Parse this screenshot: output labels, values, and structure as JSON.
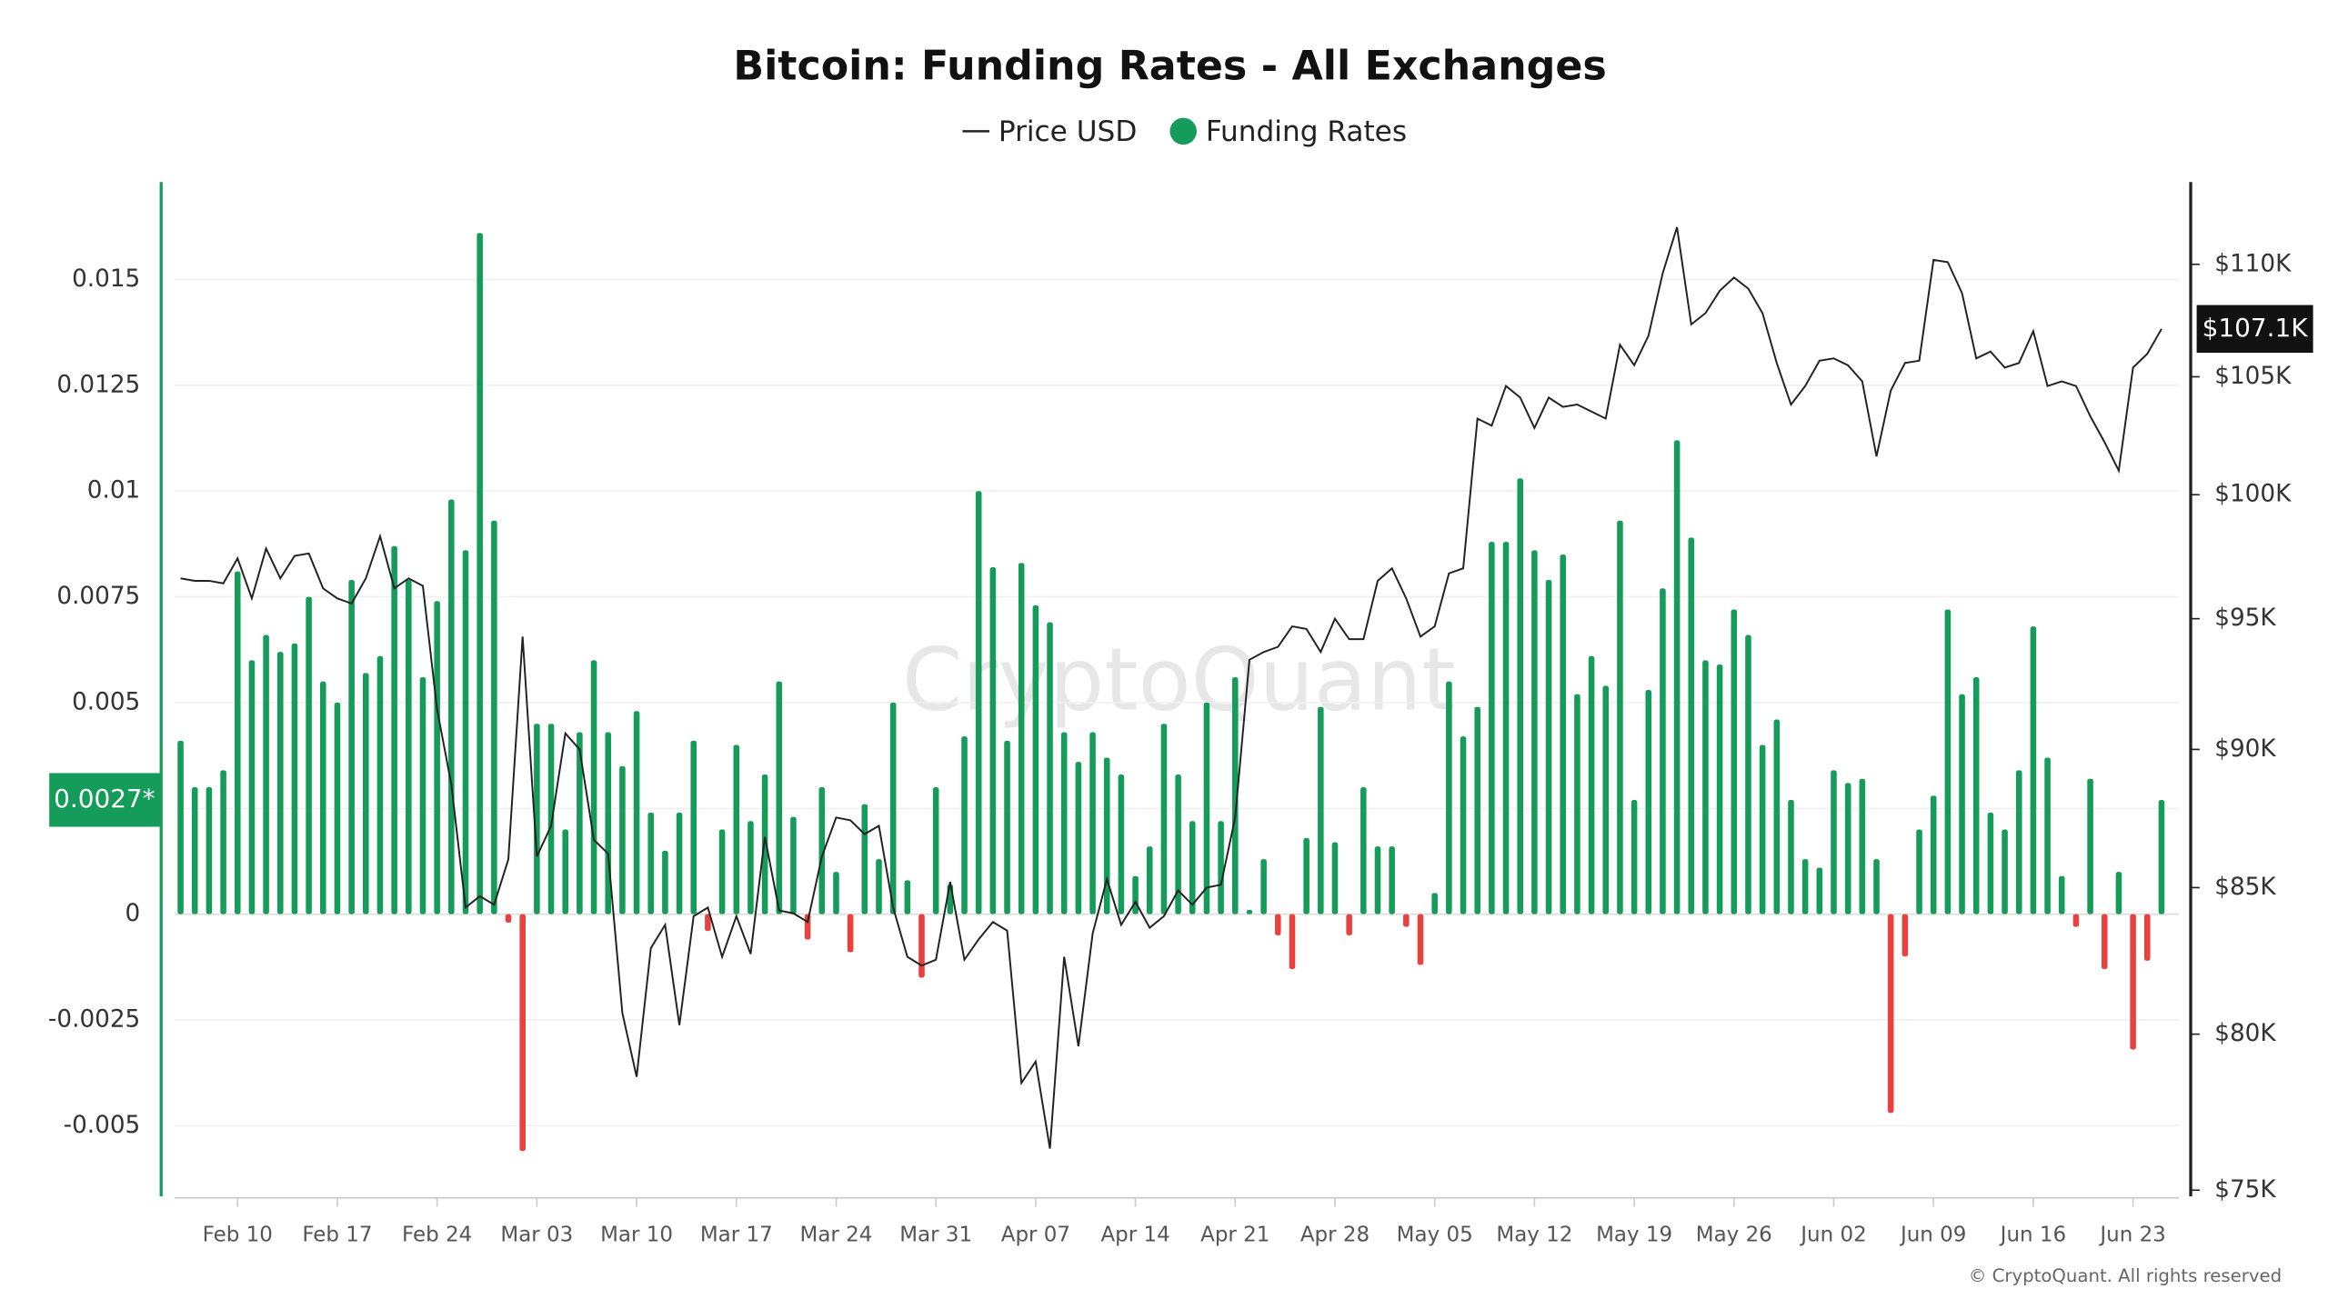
{
  "chart_data": {
    "type": "bar",
    "title": "Bitcoin: Funding Rates - All Exchanges",
    "watermark": "CryptoQuant",
    "credit": "© CryptoQuant. All rights reserved",
    "categories": [
      null,
      null,
      null,
      null,
      "Feb 10",
      null,
      null,
      null,
      null,
      null,
      null,
      "Feb 17",
      null,
      null,
      null,
      null,
      null,
      null,
      "Feb 24",
      null,
      null,
      null,
      null,
      null,
      null,
      "Mar 03",
      null,
      null,
      null,
      null,
      null,
      null,
      "Mar 10",
      null,
      null,
      null,
      null,
      null,
      null,
      "Mar 17",
      null,
      null,
      null,
      null,
      null,
      null,
      "Mar 24",
      null,
      null,
      null,
      null,
      null,
      null,
      "Mar 31",
      null,
      null,
      null,
      null,
      null,
      null,
      "Apr 07",
      null,
      null,
      null,
      null,
      null,
      null,
      "Apr 14",
      null,
      null,
      null,
      null,
      null,
      null,
      "Apr 21",
      null,
      null,
      null,
      null,
      null,
      null,
      "Apr 28",
      null,
      null,
      null,
      null,
      null,
      null,
      "May 05",
      null,
      null,
      null,
      null,
      null,
      null,
      "May 12",
      null,
      null,
      null,
      null,
      null,
      null,
      "May 19",
      null,
      null,
      null,
      null,
      null,
      null,
      "May 26",
      null,
      null,
      null,
      null,
      null,
      null,
      "Jun 02",
      null,
      null,
      null,
      null,
      null,
      null,
      "Jun 09",
      null,
      null,
      null,
      null,
      null,
      null,
      "Jun 16",
      null,
      null,
      null,
      null,
      null,
      null,
      "Jun 23",
      null,
      null
    ],
    "series": [
      {
        "name": "Price USD",
        "type": "line",
        "axis": "y2",
        "color": "#222222",
        "values": [
          96600,
          96500,
          96500,
          96400,
          97400,
          95800,
          97800,
          96600,
          97500,
          97600,
          96200,
          95800,
          95600,
          96600,
          98300,
          96200,
          96600,
          96300,
          91500,
          88700,
          84300,
          84700,
          84400,
          86000,
          94300,
          86100,
          87200,
          90600,
          90000,
          86700,
          86200,
          80700,
          78600,
          82900,
          83700,
          80300,
          84000,
          84300,
          82600,
          84000,
          82700,
          86800,
          84200,
          84100,
          83800,
          86100,
          87500,
          87400,
          86900,
          87200,
          84300,
          82600,
          82300,
          82500,
          85200,
          82500,
          83200,
          83800,
          83500,
          78400,
          79100,
          76300,
          82600,
          79600,
          83400,
          85300,
          83700,
          84500,
          83600,
          84000,
          84900,
          84400,
          85000,
          85100,
          87500,
          93400,
          93700,
          93900,
          94700,
          94600,
          93700,
          95000,
          94200,
          94200,
          96500,
          97000,
          95800,
          94300,
          94700,
          96800,
          97000,
          103200,
          102900,
          104600,
          104100,
          102800,
          104100,
          103700,
          103800,
          103500,
          103200,
          106400,
          105500,
          106800,
          109600,
          111700,
          107300,
          107800,
          108800,
          109400,
          108900,
          107800,
          105600,
          103800,
          104600,
          105700,
          105800,
          105500,
          104800,
          101600,
          104400,
          105600,
          105700,
          110200,
          110100,
          108700,
          105800,
          106100,
          105400,
          105600,
          107000,
          104600,
          104800,
          104600,
          103300,
          102200,
          101000,
          105400,
          106000,
          107100
        ]
      },
      {
        "name": "Funding Rates",
        "type": "bar",
        "color": "#169c5a",
        "negative_color": "#e8423f",
        "values": [
          0.0041,
          0.003,
          0.003,
          0.0034,
          0.0081,
          0.006,
          0.0066,
          0.0062,
          0.0064,
          0.0075,
          0.0055,
          0.005,
          0.0079,
          0.0057,
          0.0061,
          0.0087,
          0.0079,
          0.0056,
          0.0074,
          0.0098,
          0.0086,
          0.0161,
          0.0093,
          -0.0002,
          -0.0056,
          0.0045,
          0.0045,
          0.002,
          0.0043,
          0.006,
          0.0043,
          0.0035,
          0.0048,
          0.0024,
          0.0015,
          0.0024,
          0.0041,
          -0.0004,
          0.002,
          0.004,
          0.0022,
          0.0033,
          0.0055,
          0.0023,
          -0.0006,
          0.003,
          0.001,
          -0.0009,
          0.0026,
          0.0013,
          0.005,
          0.0008,
          -0.0015,
          0.003,
          0.0007,
          0.0042,
          0.01,
          0.0082,
          0.0041,
          0.0083,
          0.0073,
          0.0069,
          0.0043,
          0.0036,
          0.0043,
          0.0037,
          0.0033,
          0.0009,
          0.0016,
          0.0045,
          0.0033,
          0.0022,
          0.005,
          0.0022,
          0.0056,
          0.0001,
          0.0013,
          -0.0005,
          -0.0013,
          0.0018,
          0.0049,
          0.0017,
          -0.0005,
          0.003,
          0.0016,
          0.0016,
          -0.0003,
          -0.0012,
          0.0005,
          0.0055,
          0.0042,
          0.0049,
          0.0088,
          0.0088,
          0.0103,
          0.0086,
          0.0079,
          0.0085,
          0.0052,
          0.0061,
          0.0054,
          0.0093,
          0.0027,
          0.0053,
          0.0077,
          0.0112,
          0.0089,
          0.006,
          0.0059,
          0.0072,
          0.0066,
          0.004,
          0.0046,
          0.0027,
          0.0013,
          0.0011,
          0.0034,
          0.0031,
          0.0032,
          0.0013,
          -0.0047,
          -0.001,
          0.002,
          0.0028,
          0.0072,
          0.0052,
          0.0056,
          0.0024,
          0.002,
          0.0034,
          0.0068,
          0.0037,
          0.0009,
          -0.0003,
          0.0032,
          -0.0013,
          0.001,
          -0.0032,
          -0.0011,
          0.0027
        ]
      }
    ],
    "ylim": [
      -0.0066,
      0.0172
    ],
    "yticks": [
      -0.005,
      -0.0025,
      0,
      0.0025,
      0.005,
      0.0075,
      0.01,
      0.0125,
      0.015
    ],
    "y2lim": [
      74900,
      113600
    ],
    "y2_scale": "log",
    "y2ticks": [
      {
        "value": 75000,
        "label": "$75K"
      },
      {
        "value": 80000,
        "label": "$80K"
      },
      {
        "value": 85000,
        "label": "$85K"
      },
      {
        "value": 90000,
        "label": "$90K"
      },
      {
        "value": 95000,
        "label": "$95K"
      },
      {
        "value": 100000,
        "label": "$100K"
      },
      {
        "value": 105000,
        "label": "$105K"
      },
      {
        "value": 110000,
        "label": "$110K"
      }
    ],
    "last_price_label": {
      "value": 107100,
      "label": "$107.1K"
    },
    "last_funding_label": {
      "value": 0.0027,
      "label": "0.0027*"
    },
    "grid": true,
    "legend": "top"
  }
}
